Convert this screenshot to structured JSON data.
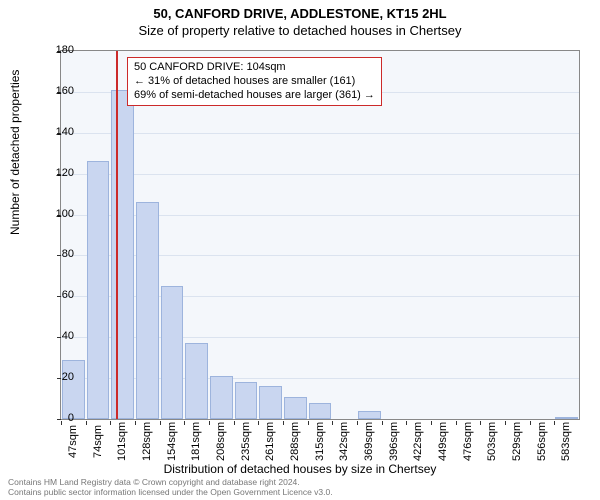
{
  "title": "50, CANFORD DRIVE, ADDLESTONE, KT15 2HL",
  "subtitle": "Size of property relative to detached houses in Chertsey",
  "ylabel": "Number of detached properties",
  "xlabel": "Distribution of detached houses by size in Chertsey",
  "chart": {
    "type": "histogram",
    "background_color": "#f4f7fb",
    "grid_color": "#dbe3ef",
    "axis_color": "#888888",
    "bar_fill": "#c9d6f0",
    "bar_stroke": "#9db4dd",
    "ref_line_color": "#cc2a2a",
    "anno_border_color": "#cc2a2a",
    "ylim": [
      0,
      180
    ],
    "ytick_step": 20,
    "xticks": [
      "47sqm",
      "74sqm",
      "101sqm",
      "128sqm",
      "154sqm",
      "181sqm",
      "208sqm",
      "235sqm",
      "261sqm",
      "288sqm",
      "315sqm",
      "342sqm",
      "369sqm",
      "396sqm",
      "422sqm",
      "449sqm",
      "476sqm",
      "503sqm",
      "529sqm",
      "556sqm",
      "583sqm"
    ],
    "xtick_edges_sqm": [
      47,
      74,
      101,
      128,
      154,
      181,
      208,
      235,
      261,
      288,
      315,
      342,
      369,
      396,
      422,
      449,
      476,
      503,
      529,
      556,
      583
    ],
    "x_range_sqm": [
      47,
      583
    ],
    "bars": [
      29,
      126,
      161,
      106,
      65,
      37,
      21,
      18,
      16,
      11,
      8,
      0,
      4,
      0,
      0,
      0,
      0,
      0,
      0,
      0,
      1
    ],
    "bar_count": 21,
    "ref_value_sqm": 104,
    "label_fontsize": 11,
    "title_fontsize": 13
  },
  "annotation": {
    "line1": "50 CANFORD DRIVE: 104sqm",
    "line2": "← 31% of detached houses are smaller (161)",
    "line3": "69% of semi-detached houses are larger (361) →"
  },
  "footer": {
    "line1": "Contains HM Land Registry data © Crown copyright and database right 2024.",
    "line2": "Contains public sector information licensed under the Open Government Licence v3.0."
  }
}
